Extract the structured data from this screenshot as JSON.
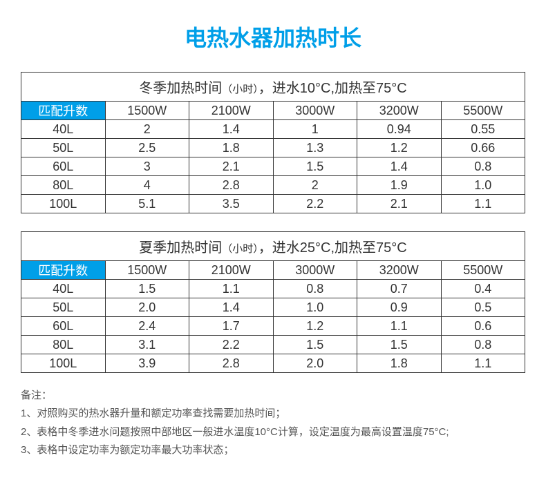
{
  "title": {
    "text": "电热水器加热时长",
    "color": "#009fe8"
  },
  "tables": [
    {
      "caption_pre": "冬季加热时间",
      "caption_unit": "（小时）",
      "caption_post": "，进水10°C,加热至75°C",
      "header_label": "匹配升数",
      "wattages": [
        "1500W",
        "2100W",
        "3000W",
        "3200W",
        "5500W"
      ],
      "rows": [
        {
          "cap": "40L",
          "vals": [
            "2",
            "1.4",
            "1",
            "0.94",
            "0.55"
          ]
        },
        {
          "cap": "50L",
          "vals": [
            "2.5",
            "1.8",
            "1.3",
            "1.2",
            "0.66"
          ]
        },
        {
          "cap": "60L",
          "vals": [
            "3",
            "2.1",
            "1.5",
            "1.4",
            "0.8"
          ]
        },
        {
          "cap": "80L",
          "vals": [
            "4",
            "2.8",
            "2",
            "1.9",
            "1.0"
          ]
        },
        {
          "cap": "100L",
          "vals": [
            "5.1",
            "3.5",
            "2.2",
            "2.1",
            "1.1"
          ]
        }
      ]
    },
    {
      "caption_pre": "夏季加热时间",
      "caption_unit": "（小时）",
      "caption_post": "，进水25°C,加热至75°C",
      "header_label": "匹配升数",
      "wattages": [
        "1500W",
        "2100W",
        "3000W",
        "3200W",
        "5500W"
      ],
      "rows": [
        {
          "cap": "40L",
          "vals": [
            "1.5",
            "1.1",
            "0.8",
            "0.7",
            "0.4"
          ]
        },
        {
          "cap": "50L",
          "vals": [
            "2.0",
            "1.4",
            "1.0",
            "0.9",
            "0.5"
          ]
        },
        {
          "cap": "60L",
          "vals": [
            "2.4",
            "1.7",
            "1.2",
            "1.1",
            "0.6"
          ]
        },
        {
          "cap": "80L",
          "vals": [
            "3.1",
            "2.2",
            "1.5",
            "1.5",
            "0.8"
          ]
        },
        {
          "cap": "100L",
          "vals": [
            "3.9",
            "2.8",
            "2.0",
            "1.8",
            "1.1"
          ]
        }
      ]
    }
  ],
  "notes": {
    "heading": "备注：",
    "items": [
      "1、对照购买的热水器升量和额定功率查找需要加热时间；",
      "2、表格中冬季进水问题按照中部地区一般进水温度10°C计算，设定温度为最高设置温度75°C;",
      "3、表格中设定功率为额定功率最大功率状态；"
    ]
  },
  "style": {
    "accent": "#009fe8",
    "border": "#333333",
    "text": "#333333",
    "notes_color": "#555555"
  }
}
